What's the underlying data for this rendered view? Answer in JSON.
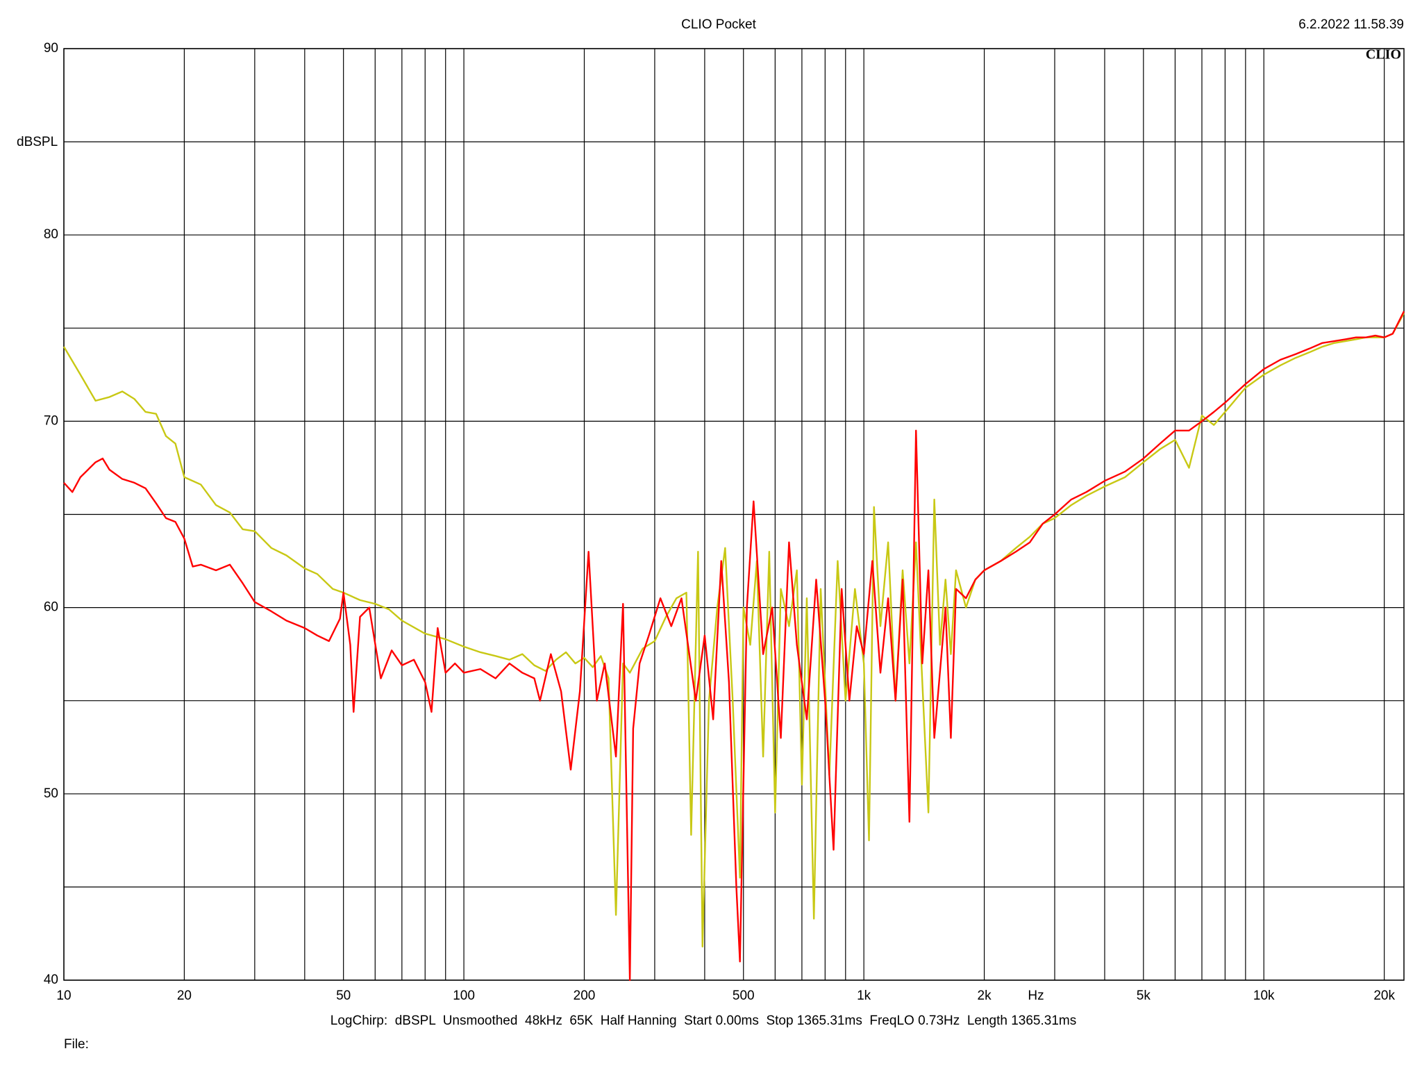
{
  "chart_data": {
    "type": "line",
    "title": "CLIO Pocket",
    "timestamp": "6.2.2022 11.58.39",
    "logo": "CLIO",
    "y_label": "dBSPL",
    "x_label": "Hz",
    "footer": "LogChirp:  dBSPL  Unsmoothed  48kHz  65K  Half Hanning  Start 0.00ms  Stop 1365.31ms  FreqLO 0.73Hz  Length 1365.31ms",
    "file_label": "File:",
    "xscale": "log",
    "xlim": [
      10,
      22400
    ],
    "ylim": [
      40,
      90
    ],
    "xticks": [
      10,
      20,
      50,
      100,
      200,
      500,
      {
        "value": 1000,
        "label": "1k"
      },
      {
        "value": 2000,
        "label": "2k"
      },
      {
        "value": 5000,
        "label": "5k"
      },
      {
        "value": 10000,
        "label": "10k"
      },
      {
        "value": 20000,
        "label": "20k"
      }
    ],
    "xgrid": [
      30,
      40,
      60,
      70,
      80,
      90,
      300,
      400,
      600,
      700,
      800,
      900,
      3000,
      4000,
      6000,
      7000,
      8000,
      9000
    ],
    "yticks": [
      40,
      50,
      60,
      70,
      80,
      90
    ],
    "ygrid": [
      45,
      55,
      65,
      75,
      85
    ],
    "grid": true,
    "series": [
      {
        "color": "#c8c814",
        "x": [
          10,
          11,
          12,
          13,
          14,
          15,
          16,
          17,
          18,
          19,
          20,
          22,
          24,
          26,
          28,
          30,
          33,
          36,
          40,
          43,
          47,
          50,
          55,
          60,
          65,
          70,
          80,
          90,
          100,
          110,
          120,
          130,
          140,
          150,
          160,
          170,
          180,
          190,
          200,
          210,
          220,
          230,
          240,
          250,
          260,
          280,
          300,
          320,
          340,
          360,
          370,
          385,
          395,
          410,
          430,
          450,
          470,
          490,
          500,
          520,
          540,
          560,
          580,
          600,
          620,
          650,
          680,
          700,
          720,
          750,
          780,
          820,
          860,
          900,
          950,
          1000,
          1030,
          1060,
          1100,
          1150,
          1200,
          1250,
          1300,
          1350,
          1400,
          1450,
          1500,
          1550,
          1600,
          1650,
          1700,
          1800,
          1900,
          2000,
          2200,
          2400,
          2600,
          2800,
          3000,
          3300,
          3600,
          4000,
          4500,
          5000,
          5500,
          6000,
          6500,
          7000,
          7500,
          8000,
          9000,
          10000,
          11000,
          12000,
          13000,
          14000,
          15000,
          16000,
          17000,
          18000,
          19000,
          20000,
          21000,
          22400
        ],
        "values": [
          74,
          72.5,
          71.1,
          71.3,
          71.6,
          71.2,
          70.5,
          70.4,
          69.2,
          68.8,
          67,
          66.6,
          65.5,
          65.1,
          64.2,
          64.1,
          63.2,
          62.8,
          62.1,
          61.8,
          61,
          60.8,
          60.4,
          60.2,
          59.9,
          59.3,
          58.6,
          58.3,
          57.9,
          57.6,
          57.4,
          57.2,
          57.5,
          56.9,
          56.6,
          57.2,
          57.6,
          57,
          57.3,
          56.8,
          57.4,
          56.2,
          43.5,
          57,
          56.5,
          57.8,
          58.2,
          59.5,
          60.5,
          60.8,
          47.8,
          63,
          41.8,
          55,
          60,
          63.2,
          55,
          45.5,
          60,
          58,
          62.5,
          52,
          63,
          49,
          61,
          59,
          62,
          50.5,
          60.5,
          43.3,
          61,
          51,
          62.5,
          55,
          61,
          57,
          47.5,
          65.4,
          59,
          63.5,
          55,
          62,
          57,
          63.5,
          56,
          49,
          65.8,
          58,
          61.5,
          57.5,
          62,
          60,
          61.5,
          62,
          62.5,
          63.2,
          63.8,
          64.5,
          64.8,
          65.5,
          66,
          66.5,
          67,
          67.8,
          68.5,
          69,
          67.5,
          70.3,
          69.8,
          70.5,
          71.8,
          72.5,
          73,
          73.4,
          73.7,
          74,
          74.2,
          74.3,
          74.4,
          74.5,
          74.5,
          74.5,
          74.7,
          75.8
        ]
      },
      {
        "color": "#ff0000",
        "x": [
          10,
          10.5,
          11,
          12,
          12.5,
          13,
          14,
          15,
          16,
          17,
          18,
          19,
          20,
          21,
          22,
          24,
          26,
          28,
          30,
          33,
          36,
          40,
          43,
          46,
          49,
          50,
          52,
          53,
          55,
          58,
          62,
          66,
          70,
          75,
          80,
          83,
          86,
          90,
          95,
          100,
          110,
          120,
          130,
          140,
          150,
          155,
          165,
          175,
          185,
          195,
          205,
          215,
          225,
          240,
          250,
          260,
          265,
          275,
          290,
          310,
          330,
          350,
          380,
          400,
          420,
          440,
          460,
          480,
          490,
          510,
          530,
          560,
          590,
          620,
          650,
          680,
          720,
          760,
          800,
          840,
          880,
          920,
          960,
          1000,
          1050,
          1100,
          1150,
          1200,
          1250,
          1300,
          1350,
          1400,
          1450,
          1500,
          1600,
          1650,
          1700,
          1800,
          1900,
          2000,
          2200,
          2400,
          2600,
          2800,
          3000,
          3300,
          3600,
          4000,
          4500,
          5000,
          5500,
          6000,
          6500,
          7000,
          7500,
          8000,
          9000,
          10000,
          11000,
          12000,
          13000,
          14000,
          15000,
          16000,
          17000,
          18000,
          19000,
          20000,
          21000,
          22400
        ],
        "values": [
          66.7,
          66.2,
          67,
          67.8,
          68,
          67.4,
          66.9,
          66.7,
          66.4,
          65.6,
          64.8,
          64.6,
          63.7,
          62.2,
          62.3,
          62,
          62.3,
          61.3,
          60.3,
          59.8,
          59.3,
          58.9,
          58.5,
          58.2,
          59.4,
          60.8,
          58,
          54.4,
          59.5,
          60,
          56.2,
          57.7,
          56.9,
          57.2,
          56,
          54.4,
          58.9,
          56.5,
          57,
          56.5,
          56.7,
          56.2,
          57,
          56.5,
          56.2,
          55,
          57.5,
          55.5,
          51.3,
          55.5,
          63,
          55,
          57,
          52,
          60.2,
          40,
          53.5,
          57,
          58.5,
          60.5,
          59,
          60.5,
          55,
          58.5,
          54,
          62.5,
          56,
          45,
          41,
          60,
          65.7,
          57.5,
          60,
          53,
          63.5,
          58,
          54,
          61.5,
          55,
          47,
          61,
          55,
          59,
          57.5,
          62.5,
          56.5,
          60.5,
          55,
          61.5,
          48.5,
          69.5,
          57,
          62,
          53,
          60,
          53,
          61,
          60.5,
          61.5,
          62,
          62.5,
          63,
          63.5,
          64.5,
          65,
          65.8,
          66.2,
          66.8,
          67.3,
          68,
          68.8,
          69.5,
          69.5,
          70,
          70.5,
          71,
          72,
          72.8,
          73.3,
          73.6,
          73.9,
          74.2,
          74.3,
          74.4,
          74.5,
          74.5,
          74.6,
          74.5,
          74.7,
          75.9
        ]
      }
    ]
  }
}
